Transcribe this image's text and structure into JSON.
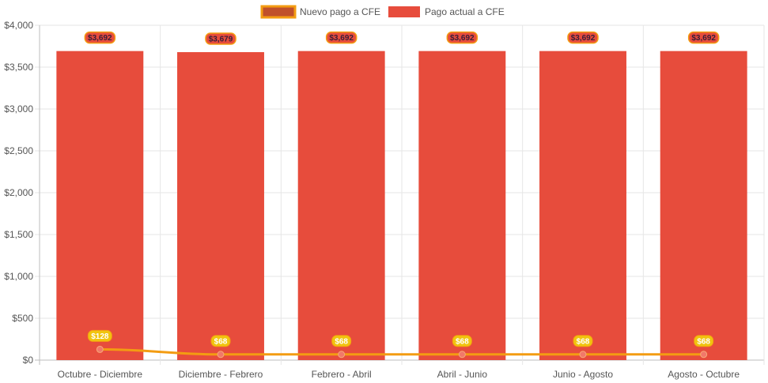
{
  "chart_data": {
    "type": "bar",
    "categories": [
      "Octubre - Diciembre",
      "Diciembre - Febrero",
      "Febrero - Abril",
      "Abril - Junio",
      "Junio - Agosto",
      "Agosto - Octubre"
    ],
    "series": [
      {
        "name": "Nuevo pago a CFE",
        "type": "line",
        "values": [
          128,
          68,
          68,
          68,
          68,
          68
        ],
        "labels": [
          "$128",
          "$68",
          "$68",
          "$68",
          "$68",
          "$68"
        ],
        "color": "#f39c12",
        "point_color": "#f1786a"
      },
      {
        "name": "Pago actual a CFE",
        "type": "bar",
        "values": [
          3692,
          3679,
          3692,
          3692,
          3692,
          3692
        ],
        "labels": [
          "$3,692",
          "$3,679",
          "$3,692",
          "$3,692",
          "$3,692",
          "$3,692"
        ],
        "color": "#e74c3c"
      }
    ],
    "ylim": [
      0,
      4000
    ],
    "yticks": [
      "$0",
      "$500",
      "$1,000",
      "$1,500",
      "$2,000",
      "$2,500",
      "$3,000",
      "$3,500",
      "$4,000"
    ],
    "ytick_values": [
      0,
      500,
      1000,
      1500,
      2000,
      2500,
      3000,
      3500,
      4000
    ],
    "grid": true,
    "legend": "top-center",
    "legend_swatch_line": "#c0502a"
  }
}
